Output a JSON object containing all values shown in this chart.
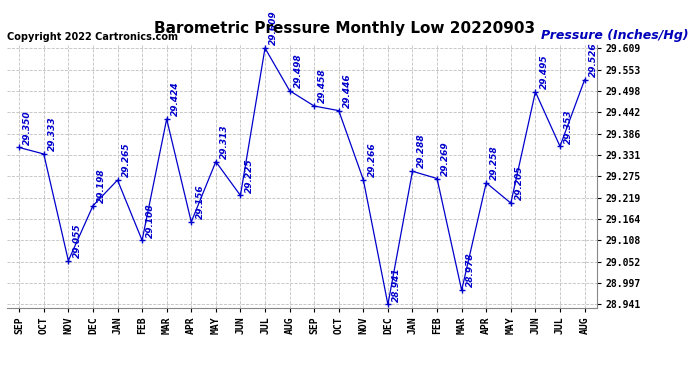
{
  "title": "Barometric Pressure Monthly Low 20220903",
  "ylabel": "Pressure (Inches/Hg)",
  "copyright": "Copyright 2022 Cartronics.com",
  "x_labels": [
    "SEP",
    "OCT",
    "NOV",
    "DEC",
    "JAN",
    "FEB",
    "MAR",
    "APR",
    "MAY",
    "JUN",
    "JUL",
    "AUG",
    "SEP",
    "OCT",
    "NOV",
    "DEC",
    "JAN",
    "FEB",
    "MAR",
    "APR",
    "MAY",
    "JUN",
    "JUL",
    "AUG"
  ],
  "y_values": [
    29.35,
    29.333,
    29.055,
    29.198,
    29.265,
    29.108,
    29.424,
    29.156,
    29.313,
    29.225,
    29.609,
    29.498,
    29.458,
    29.446,
    29.266,
    28.941,
    29.288,
    29.269,
    28.978,
    29.258,
    29.205,
    29.495,
    29.353,
    29.526
  ],
  "y_min": 28.941,
  "y_max": 29.609,
  "y_ticks": [
    28.941,
    28.997,
    29.052,
    29.108,
    29.164,
    29.219,
    29.275,
    29.331,
    29.386,
    29.442,
    29.498,
    29.553,
    29.609
  ],
  "line_color": "#0000CC",
  "marker_color": "#0000CC",
  "title_color": "#000000",
  "ylabel_color": "#0000BB",
  "copyright_color": "#000000",
  "grid_color": "#C0C0C0",
  "background_color": "#FFFFFF",
  "title_fontsize": 11,
  "label_fontsize": 7,
  "annotation_fontsize": 6.5,
  "copyright_fontsize": 7,
  "ylabel_fontsize": 9
}
